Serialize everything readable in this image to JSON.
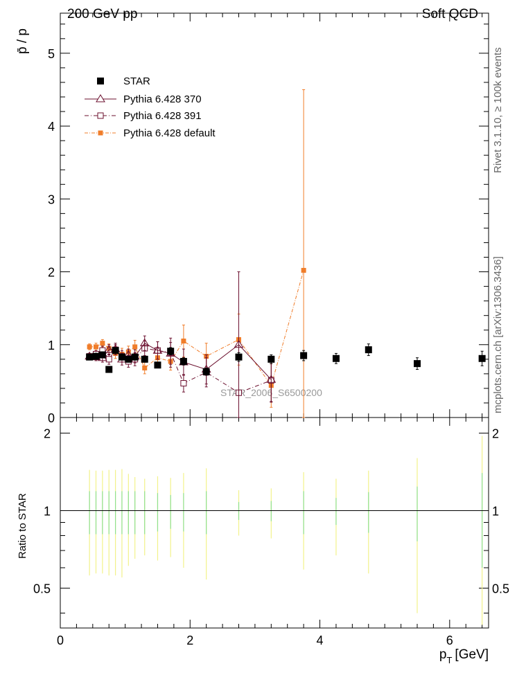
{
  "header": {
    "left_title": "200 GeV pp",
    "right_title": "Soft QCD"
  },
  "side_labels": {
    "rivet": "Rivet 3.1.10, ≥ 100k events",
    "mcplots": "mcplots.cern.ch [arXiv:1306.3436]"
  },
  "chart_data": {
    "type": "scatter",
    "title": "",
    "analysis_id": "STAR_2006_S6500200",
    "xlabel_main": "p",
    "xlabel_sub": "T",
    "xlabel_unit": "[GeV]",
    "ylabel_main": "p̄ / p",
    "ylabel_ratio": "Ratio to STAR",
    "xlim": [
      0,
      6.6
    ],
    "ylim_main": [
      0,
      5.55
    ],
    "ylim_ratio": [
      0.35,
      2.3
    ],
    "xticks": [
      0,
      2,
      4,
      6
    ],
    "xtick_labels": [
      "0",
      "2",
      "4",
      "6"
    ],
    "yticks_main": [
      0,
      1,
      2,
      3,
      4,
      5
    ],
    "ytick_labels_main": [
      "0",
      "1",
      "2",
      "3",
      "4",
      "5"
    ],
    "yticks_ratio": [
      0.5,
      1,
      2
    ],
    "ytick_labels_ratio": [
      "0.5",
      "1",
      "2"
    ],
    "legend_position": "top-left",
    "series": [
      {
        "name": "STAR",
        "style": "data",
        "color": "#000000",
        "x": [
          0.45,
          0.55,
          0.65,
          0.75,
          0.85,
          0.95,
          1.05,
          1.15,
          1.3,
          1.5,
          1.7,
          1.9,
          2.25,
          2.75,
          3.25,
          3.75,
          4.25,
          4.75,
          5.5,
          6.5
        ],
        "y": [
          0.83,
          0.84,
          0.86,
          0.66,
          0.92,
          0.83,
          0.8,
          0.83,
          0.8,
          0.72,
          0.91,
          0.77,
          0.63,
          0.83,
          0.8,
          0.85,
          0.81,
          0.93,
          0.74,
          0.81
        ],
        "err": [
          0.04,
          0.04,
          0.04,
          0.04,
          0.04,
          0.04,
          0.04,
          0.04,
          0.04,
          0.04,
          0.05,
          0.05,
          0.05,
          0.06,
          0.06,
          0.07,
          0.07,
          0.08,
          0.08,
          0.1
        ],
        "ratio_band_inner": [
          0.19,
          0.19,
          0.19,
          0.19,
          0.19,
          0.19,
          0.19,
          0.19,
          0.19,
          0.17,
          0.15,
          0.17,
          0.19,
          0.08,
          0.09,
          0.19,
          0.12,
          0.18,
          0.24,
          0.4
        ],
        "ratio_band_outer": [
          0.44,
          0.43,
          0.43,
          0.44,
          0.44,
          0.45,
          0.39,
          0.35,
          0.33,
          0.36,
          0.34,
          0.4,
          0.46,
          0.2,
          0.22,
          0.41,
          0.33,
          0.43,
          0.6,
          0.95
        ]
      },
      {
        "name": "Pythia 6.428 370",
        "style": "triangle-solid",
        "color": "#6b0f2e",
        "x": [
          0.45,
          0.55,
          0.65,
          0.75,
          0.85,
          0.95,
          1.05,
          1.15,
          1.3,
          1.5,
          1.7,
          1.9,
          2.25,
          2.75,
          3.25
        ],
        "y": [
          0.84,
          0.83,
          0.82,
          0.93,
          0.94,
          0.8,
          0.86,
          0.84,
          1.02,
          0.92,
          0.88,
          0.76,
          0.66,
          1.0,
          0.52
        ],
        "err": [
          0.04,
          0.05,
          0.06,
          0.07,
          0.08,
          0.08,
          0.08,
          0.09,
          0.1,
          0.12,
          0.15,
          0.18,
          0.2,
          1.0,
          0.3
        ]
      },
      {
        "name": "Pythia 6.428 391",
        "style": "square-open-dashdot",
        "color": "#6b0f2e",
        "x": [
          0.45,
          0.55,
          0.65,
          0.75,
          0.85,
          0.95,
          1.05,
          1.15,
          1.3,
          1.5,
          1.7,
          1.9,
          2.25,
          2.75,
          3.25
        ],
        "y": [
          0.84,
          0.87,
          0.92,
          0.8,
          0.93,
          0.84,
          0.77,
          0.8,
          0.95,
          0.92,
          0.89,
          0.47,
          0.62,
          0.34,
          0.51
        ],
        "err": [
          0.04,
          0.05,
          0.06,
          0.07,
          0.07,
          0.08,
          0.08,
          0.09,
          0.1,
          0.12,
          0.2,
          0.12,
          0.2,
          0.5,
          0.3
        ]
      },
      {
        "name": "Pythia 6.428 default",
        "style": "square-filled-dashdot",
        "color": "#f07d2a",
        "x": [
          0.45,
          0.55,
          0.65,
          0.75,
          0.85,
          0.95,
          1.05,
          1.15,
          1.3,
          1.5,
          1.7,
          1.9,
          2.25,
          2.75,
          3.25,
          3.75
        ],
        "y": [
          0.97,
          0.97,
          1.02,
          0.95,
          0.88,
          0.87,
          0.9,
          0.97,
          0.68,
          0.82,
          0.77,
          1.05,
          0.84,
          1.07,
          0.44,
          2.02
        ],
        "err": [
          0.04,
          0.05,
          0.05,
          0.06,
          0.07,
          0.08,
          0.08,
          0.09,
          0.08,
          0.1,
          0.12,
          0.22,
          0.18,
          0.35,
          0.3,
          2.48
        ]
      }
    ]
  }
}
